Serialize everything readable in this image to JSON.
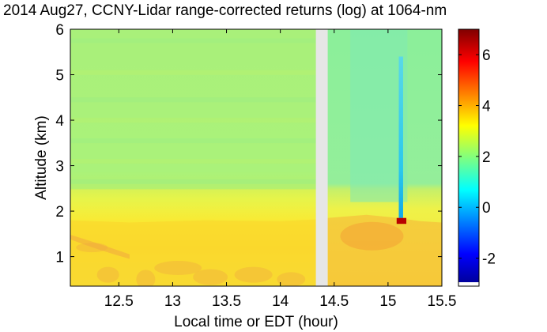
{
  "chart_data": {
    "type": "heatmap",
    "title": "2014 Aug27, CCNY-Lidar range-corrected returns (log) at 1064-nm",
    "xlabel": "Local time or EDT (hour)",
    "ylabel": "Altitude (km)",
    "xlim": [
      12.05,
      15.5
    ],
    "ylim": [
      0.35,
      6.0
    ],
    "x_ticks": [
      12.5,
      13,
      13.5,
      14,
      14.5,
      15,
      15.5
    ],
    "x_tick_labels": [
      "12.5",
      "13",
      "13.5",
      "14",
      "14.5",
      "15",
      "15.5"
    ],
    "y_ticks": [
      1,
      2,
      3,
      4,
      5,
      6
    ],
    "y_tick_labels": [
      "1",
      "2",
      "3",
      "4",
      "5",
      "6"
    ],
    "colorbar": {
      "range": [
        -3.1,
        7.0
      ],
      "ticks": [
        -2,
        0,
        2,
        4,
        6
      ],
      "tick_labels": [
        "-2",
        "0",
        "2",
        "4",
        "6"
      ],
      "colormap": "jet"
    },
    "data_gap": {
      "x_start": 14.33,
      "x_end": 14.44,
      "color": "#e6e6e6"
    },
    "regions": [
      {
        "name": "boundary-layer",
        "x": [
          12.05,
          15.5
        ],
        "y": [
          0.35,
          1.8
        ],
        "value": 3.5
      },
      {
        "name": "entrainment-zone",
        "x": [
          12.05,
          15.5
        ],
        "y": [
          1.8,
          2.35
        ],
        "value": 3.0
      },
      {
        "name": "free-troposphere",
        "x": [
          12.05,
          15.5
        ],
        "y": [
          2.35,
          6.0
        ],
        "value": 2.1
      },
      {
        "name": "cloud-base",
        "x": [
          15.08,
          15.17
        ],
        "y": [
          1.72,
          1.85
        ],
        "value": 6.5
      },
      {
        "name": "above-cloud-attenuation",
        "x": [
          15.1,
          15.14
        ],
        "y": [
          1.85,
          5.4
        ],
        "value": 0.3
      }
    ],
    "grid": false
  }
}
